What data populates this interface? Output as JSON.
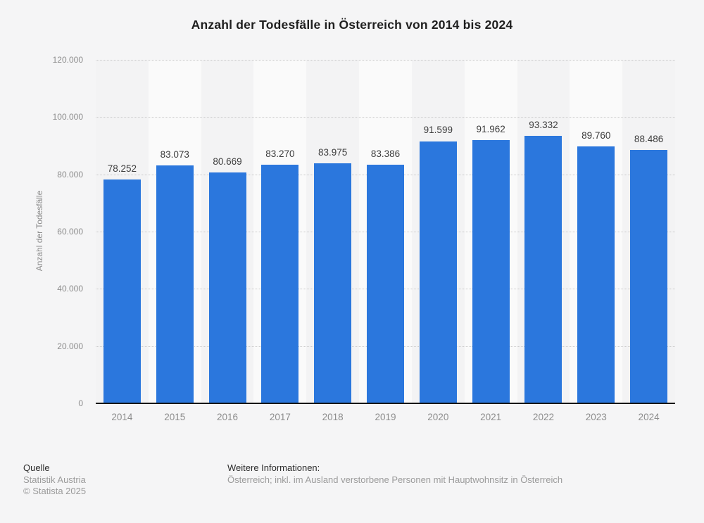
{
  "title": "Anzahl der Todesfälle in Österreich von 2014 bis 2024",
  "chart_data": {
    "type": "bar",
    "title": "Anzahl der Todesfälle in Österreich von 2014 bis 2024",
    "categories": [
      "2014",
      "2015",
      "2016",
      "2017",
      "2018",
      "2019",
      "2020",
      "2021",
      "2022",
      "2023",
      "2024"
    ],
    "values": [
      78252,
      83073,
      80669,
      83270,
      83975,
      83386,
      91599,
      91962,
      93332,
      89760,
      88486
    ],
    "value_labels": [
      "78.252",
      "83.073",
      "80.669",
      "83.270",
      "83.975",
      "83.386",
      "91.599",
      "91.962",
      "93.332",
      "89.760",
      "88.486"
    ],
    "xlabel": "",
    "ylabel": "Anzahl der Todesfälle",
    "ylim": [
      0,
      120000
    ],
    "yticks": [
      0,
      20000,
      40000,
      60000,
      80000,
      100000,
      120000
    ],
    "ytick_labels": [
      "0",
      "20.000",
      "40.000",
      "60.000",
      "80.000",
      "100.000",
      "120.000"
    ],
    "grid": "horizontal-dotted",
    "legend": "none",
    "bar_color": "#2b77dd"
  },
  "colors": {
    "background": "#f5f5f6",
    "stripe_even": "#f3f3f4",
    "stripe_odd": "#fafafa",
    "bar": "#2b77dd",
    "gridline": "#c9c9c9",
    "axis_line": "#161616",
    "title_text": "#1f1f1f",
    "tick_text": "#8d8d8d",
    "value_text": "#3d3d3d"
  },
  "footer": {
    "source_header": "Quelle",
    "source_lines": [
      "Statistik Austria",
      "© Statista 2025"
    ],
    "info_header": "Weitere Informationen:",
    "info_lines": [
      "Österreich; inkl. im Ausland verstorbene Personen mit Hauptwohnsitz in Österreich"
    ]
  }
}
